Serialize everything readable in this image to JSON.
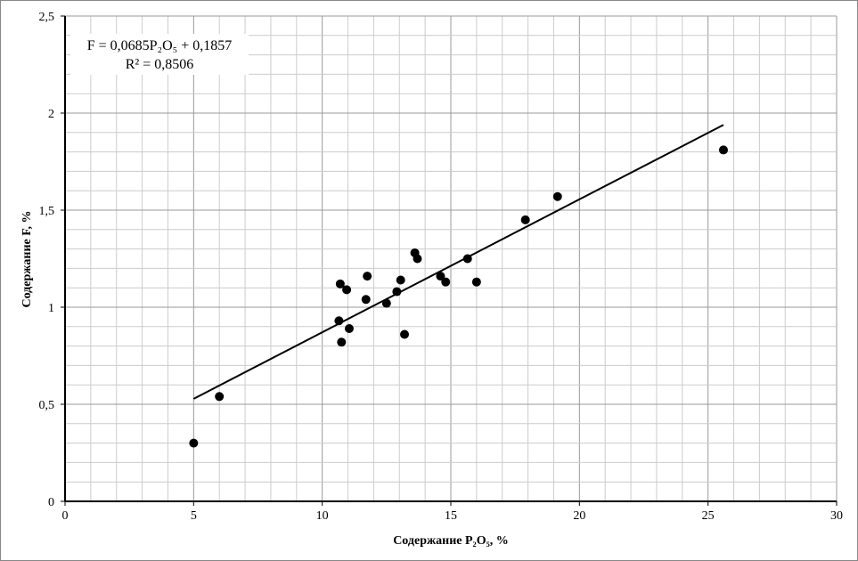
{
  "chart_data": {
    "type": "scatter",
    "title": "",
    "xlabel": "Содержание P₂O₅, %",
    "ylabel": "Содержание F, %",
    "xlim": [
      0,
      30
    ],
    "ylim": [
      0,
      2.5
    ],
    "xticks": [
      0,
      5,
      10,
      15,
      20,
      25,
      30
    ],
    "xtick_labels": [
      "0",
      "5",
      "10",
      "15",
      "20",
      "25",
      "30"
    ],
    "yticks": [
      0,
      0.5,
      1,
      1.5,
      2,
      2.5
    ],
    "ytick_labels": [
      "0",
      "0,5",
      "1",
      "1,5",
      "2",
      "2,5"
    ],
    "grid": true,
    "points": [
      [
        5.0,
        0.3
      ],
      [
        6.0,
        0.54
      ],
      [
        10.7,
        1.12
      ],
      [
        10.95,
        1.09
      ],
      [
        11.75,
        1.16
      ],
      [
        10.65,
        0.93
      ],
      [
        10.75,
        0.82
      ],
      [
        11.05,
        0.89
      ],
      [
        11.7,
        1.04
      ],
      [
        12.5,
        1.02
      ],
      [
        12.9,
        1.08
      ],
      [
        13.05,
        1.14
      ],
      [
        13.2,
        0.86
      ],
      [
        13.6,
        1.28
      ],
      [
        13.7,
        1.25
      ],
      [
        14.6,
        1.16
      ],
      [
        14.8,
        1.13
      ],
      [
        15.65,
        1.25
      ],
      [
        16.0,
        1.13
      ],
      [
        17.9,
        1.45
      ],
      [
        19.15,
        1.57
      ],
      [
        25.6,
        1.81
      ]
    ],
    "trendline": {
      "slope": 0.0685,
      "intercept": 0.1857,
      "x_range": [
        5,
        25.6
      ]
    },
    "annotations": {
      "equation": "F = 0,0685P₂O₅ + 0,1857",
      "r2": "R² = 0,8506"
    }
  }
}
